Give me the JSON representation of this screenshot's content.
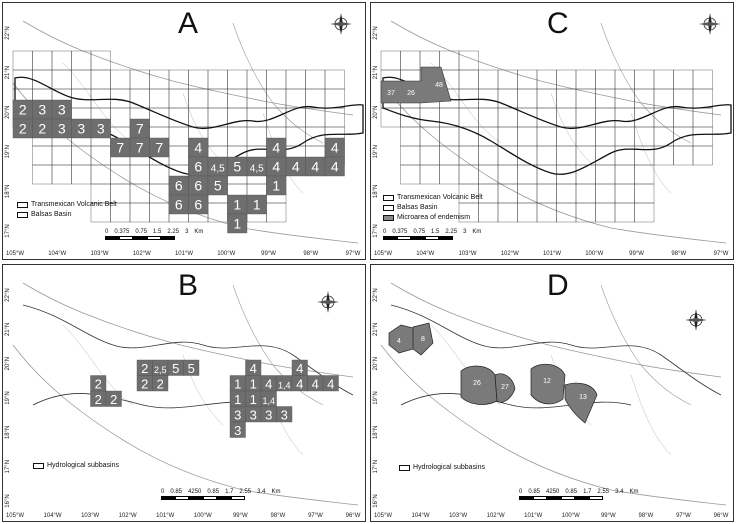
{
  "panels": {
    "A": {
      "letter": "A",
      "legend": [
        "Transmexican Volcanic Belt",
        "Balsas Basin"
      ],
      "scale_ticks": [
        "0",
        "0.375",
        "0.75",
        "1.5",
        "2.25",
        "3"
      ],
      "scale_unit": "Km",
      "x_ticks": [
        "105°W",
        "104°W",
        "103°W",
        "102°W",
        "101°W",
        "100°W",
        "99°W",
        "98°W",
        "97°W"
      ],
      "y_ticks": [
        "22°N",
        "21°N",
        "20°N",
        "19°N",
        "18°N",
        "17°N"
      ],
      "cells": [
        {
          "label": "2",
          "col": 0,
          "row": 1
        },
        {
          "label": "3",
          "col": 1,
          "row": 1
        },
        {
          "label": "3",
          "col": 2,
          "row": 1
        },
        {
          "label": "2",
          "col": 0,
          "row": 2
        },
        {
          "label": "2",
          "col": 1,
          "row": 2
        },
        {
          "label": "3",
          "col": 2,
          "row": 2
        },
        {
          "label": "3",
          "col": 3,
          "row": 2
        },
        {
          "label": "3",
          "col": 4,
          "row": 2
        },
        {
          "label": "7",
          "col": 6,
          "row": 2
        },
        {
          "label": "7",
          "col": 5,
          "row": 3
        },
        {
          "label": "7",
          "col": 6,
          "row": 3
        },
        {
          "label": "7",
          "col": 7,
          "row": 3
        },
        {
          "label": "4",
          "col": 9,
          "row": 3
        },
        {
          "label": "4",
          "col": 13,
          "row": 3
        },
        {
          "label": "4",
          "col": 16,
          "row": 3
        },
        {
          "label": "6",
          "col": 9,
          "row": 4
        },
        {
          "label": "4,5",
          "col": 10,
          "row": 4
        },
        {
          "label": "5",
          "col": 11,
          "row": 4
        },
        {
          "label": "4,5",
          "col": 12,
          "row": 4
        },
        {
          "label": "4",
          "col": 13,
          "row": 4
        },
        {
          "label": "4",
          "col": 14,
          "row": 4
        },
        {
          "label": "4",
          "col": 15,
          "row": 4
        },
        {
          "label": "4",
          "col": 16,
          "row": 4
        },
        {
          "label": "6",
          "col": 8,
          "row": 5
        },
        {
          "label": "6",
          "col": 9,
          "row": 5
        },
        {
          "label": "5",
          "col": 10,
          "row": 5
        },
        {
          "label": "1",
          "col": 13,
          "row": 5
        },
        {
          "label": "6",
          "col": 8,
          "row": 6
        },
        {
          "label": "6",
          "col": 9,
          "row": 6
        },
        {
          "label": "1",
          "col": 11,
          "row": 6
        },
        {
          "label": "1",
          "col": 12,
          "row": 6
        },
        {
          "label": "1",
          "col": 11,
          "row": 7
        }
      ]
    },
    "B": {
      "letter": "B",
      "legend": [
        "Hydrological subbasins"
      ],
      "scale_ticks": [
        "0",
        "0.85",
        "4250",
        "0.85",
        "1.7",
        "2.55",
        "3.4"
      ],
      "scale_unit": "Km",
      "x_ticks": [
        "105°W",
        "104°W",
        "103°W",
        "102°W",
        "101°W",
        "100°W",
        "99°W",
        "98°W",
        "97°W",
        "96°W"
      ],
      "y_ticks": [
        "22°N",
        "21°N",
        "20°N",
        "19°N",
        "18°N",
        "17°N",
        "16°N"
      ],
      "cells": [
        {
          "label": "2",
          "col": 4,
          "row": 0
        },
        {
          "label": "2,5",
          "col": 5,
          "row": 0
        },
        {
          "label": "5",
          "col": 6,
          "row": 0
        },
        {
          "label": "5",
          "col": 7,
          "row": 0
        },
        {
          "label": "4",
          "col": 11,
          "row": 0
        },
        {
          "label": "4",
          "col": 14,
          "row": 0
        },
        {
          "label": "2",
          "col": 1,
          "row": 1
        },
        {
          "label": "2",
          "col": 4,
          "row": 1
        },
        {
          "label": "2",
          "col": 5,
          "row": 1
        },
        {
          "label": "1",
          "col": 10,
          "row": 1
        },
        {
          "label": "1",
          "col": 11,
          "row": 1
        },
        {
          "label": "4",
          "col": 12,
          "row": 1
        },
        {
          "label": "1,4",
          "col": 13,
          "row": 1
        },
        {
          "label": "4",
          "col": 14,
          "row": 1
        },
        {
          "label": "4",
          "col": 15,
          "row": 1
        },
        {
          "label": "4",
          "col": 16,
          "row": 1
        },
        {
          "label": "2",
          "col": 1,
          "row": 2
        },
        {
          "label": "2",
          "col": 2,
          "row": 2
        },
        {
          "label": "1",
          "col": 10,
          "row": 2
        },
        {
          "label": "1",
          "col": 11,
          "row": 2
        },
        {
          "label": "1,4",
          "col": 12,
          "row": 2
        },
        {
          "label": "3",
          "col": 10,
          "row": 3
        },
        {
          "label": "3",
          "col": 11,
          "row": 3
        },
        {
          "label": "3",
          "col": 12,
          "row": 3
        },
        {
          "label": "3",
          "col": 13,
          "row": 3
        },
        {
          "label": "3",
          "col": 10,
          "row": 4
        }
      ]
    },
    "C": {
      "letter": "C",
      "legend": [
        "Transmexican Volcanic Belt",
        "Balsas Basin",
        "Microarea of endemism"
      ],
      "scale_ticks": [
        "0",
        "0.375",
        "0.75",
        "1.5",
        "2.25",
        "3"
      ],
      "scale_unit": "Km",
      "x_ticks": [
        "105°W",
        "104°W",
        "103°W",
        "102°W",
        "101°W",
        "100°W",
        "99°W",
        "98°W",
        "97°W"
      ],
      "y_ticks": [
        "22°N",
        "21°N",
        "20°N",
        "19°N",
        "18°N",
        "17°N"
      ],
      "micro_labels": [
        "37",
        "26",
        "48"
      ]
    },
    "D": {
      "letter": "D",
      "legend": [
        "Hydrological subbasins"
      ],
      "scale_ticks": [
        "0",
        "0.85",
        "4250",
        "0.85",
        "1.7",
        "2.55",
        "3.4"
      ],
      "scale_unit": "Km",
      "x_ticks": [
        "105°W",
        "104°W",
        "103°W",
        "102°W",
        "101°W",
        "100°W",
        "99°W",
        "98°W",
        "97°W",
        "96°W"
      ],
      "y_ticks": [
        "22°N",
        "21°N",
        "20°N",
        "19°N",
        "18°N",
        "17°N",
        "16°N"
      ],
      "region_labels": [
        "4",
        "8",
        "26",
        "27",
        "12",
        "13"
      ]
    }
  },
  "compass_labels": {
    "n": "N",
    "s": "S",
    "e": "E",
    "w": "W"
  },
  "colors": {
    "cell": "#6e6e6e",
    "region": "#7a7a7a",
    "grid": "#444444",
    "coast": "#9a9a9a",
    "tvb": "#111111"
  }
}
